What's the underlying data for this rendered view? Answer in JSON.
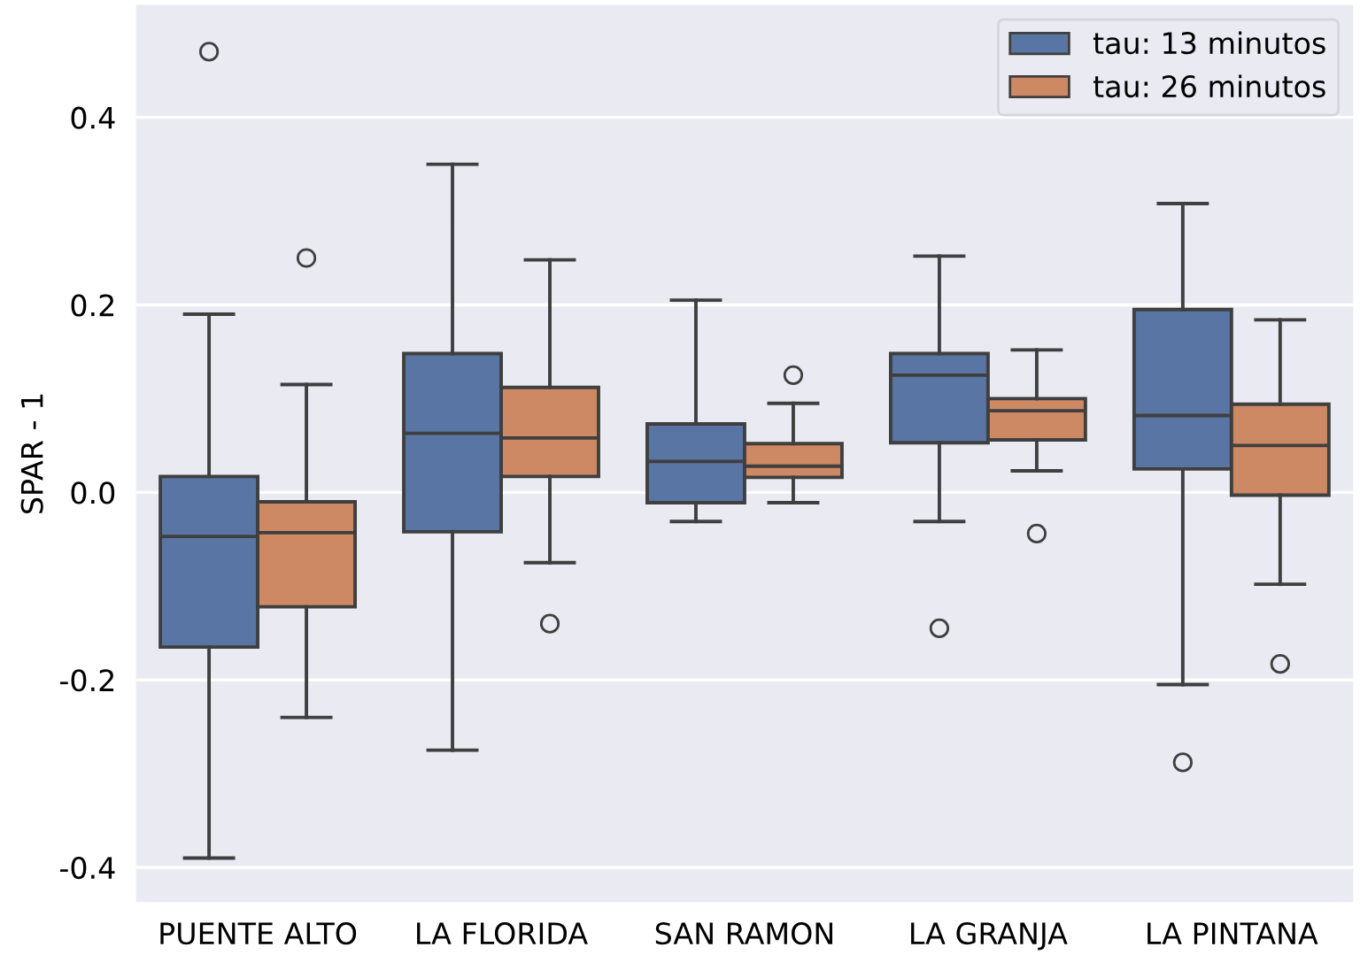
{
  "chart_data": {
    "type": "box",
    "ylabel": "SPAR - 1",
    "categories": [
      "PUENTE ALTO",
      "LA FLORIDA",
      "SAN RAMON",
      "LA GRANJA",
      "LA PINTANA"
    ],
    "ylim": [
      -0.437,
      0.52
    ],
    "yticks": [
      -0.4,
      -0.2,
      {
        "value": 0,
        "label": "0.0"
      },
      0.2,
      0.4
    ],
    "grid": "y",
    "legend": "top right",
    "series": [
      {
        "name": "tau: 13 minutos",
        "color": "#5975a4",
        "boxes": [
          {
            "low": -0.39,
            "q1": -0.165,
            "median": -0.047,
            "q3": 0.017,
            "high": 0.19,
            "outliers": [
              0.47
            ]
          },
          {
            "low": -0.275,
            "q1": -0.042,
            "median": 0.063,
            "q3": 0.148,
            "high": 0.35
          },
          {
            "low": -0.031,
            "q1": -0.011,
            "median": 0.033,
            "q3": 0.073,
            "high": 0.205
          },
          {
            "low": -0.031,
            "q1": 0.053,
            "median": 0.125,
            "q3": 0.148,
            "high": 0.252,
            "outliers": [
              -0.145
            ]
          },
          {
            "low": -0.205,
            "q1": 0.025,
            "median": 0.082,
            "q3": 0.195,
            "high": 0.308,
            "outliers": [
              -0.288
            ]
          }
        ]
      },
      {
        "name": "tau: 26 minutos",
        "color": "#cc8963",
        "boxes": [
          {
            "low": -0.24,
            "q1": -0.122,
            "median": -0.043,
            "q3": -0.01,
            "high": 0.115,
            "outliers": [
              0.25
            ]
          },
          {
            "low": -0.075,
            "q1": 0.017,
            "median": 0.058,
            "q3": 0.112,
            "high": 0.248,
            "outliers": [
              -0.14
            ]
          },
          {
            "low": -0.011,
            "q1": 0.016,
            "median": 0.028,
            "q3": 0.052,
            "high": 0.095,
            "outliers": [
              0.125
            ]
          },
          {
            "low": 0.023,
            "q1": 0.056,
            "median": 0.087,
            "q3": 0.1,
            "high": 0.152,
            "outliers": [
              -0.044
            ]
          },
          {
            "low": -0.098,
            "q1": -0.003,
            "median": 0.05,
            "q3": 0.094,
            "high": 0.184,
            "outliers": [
              -0.183
            ]
          }
        ]
      }
    ]
  }
}
